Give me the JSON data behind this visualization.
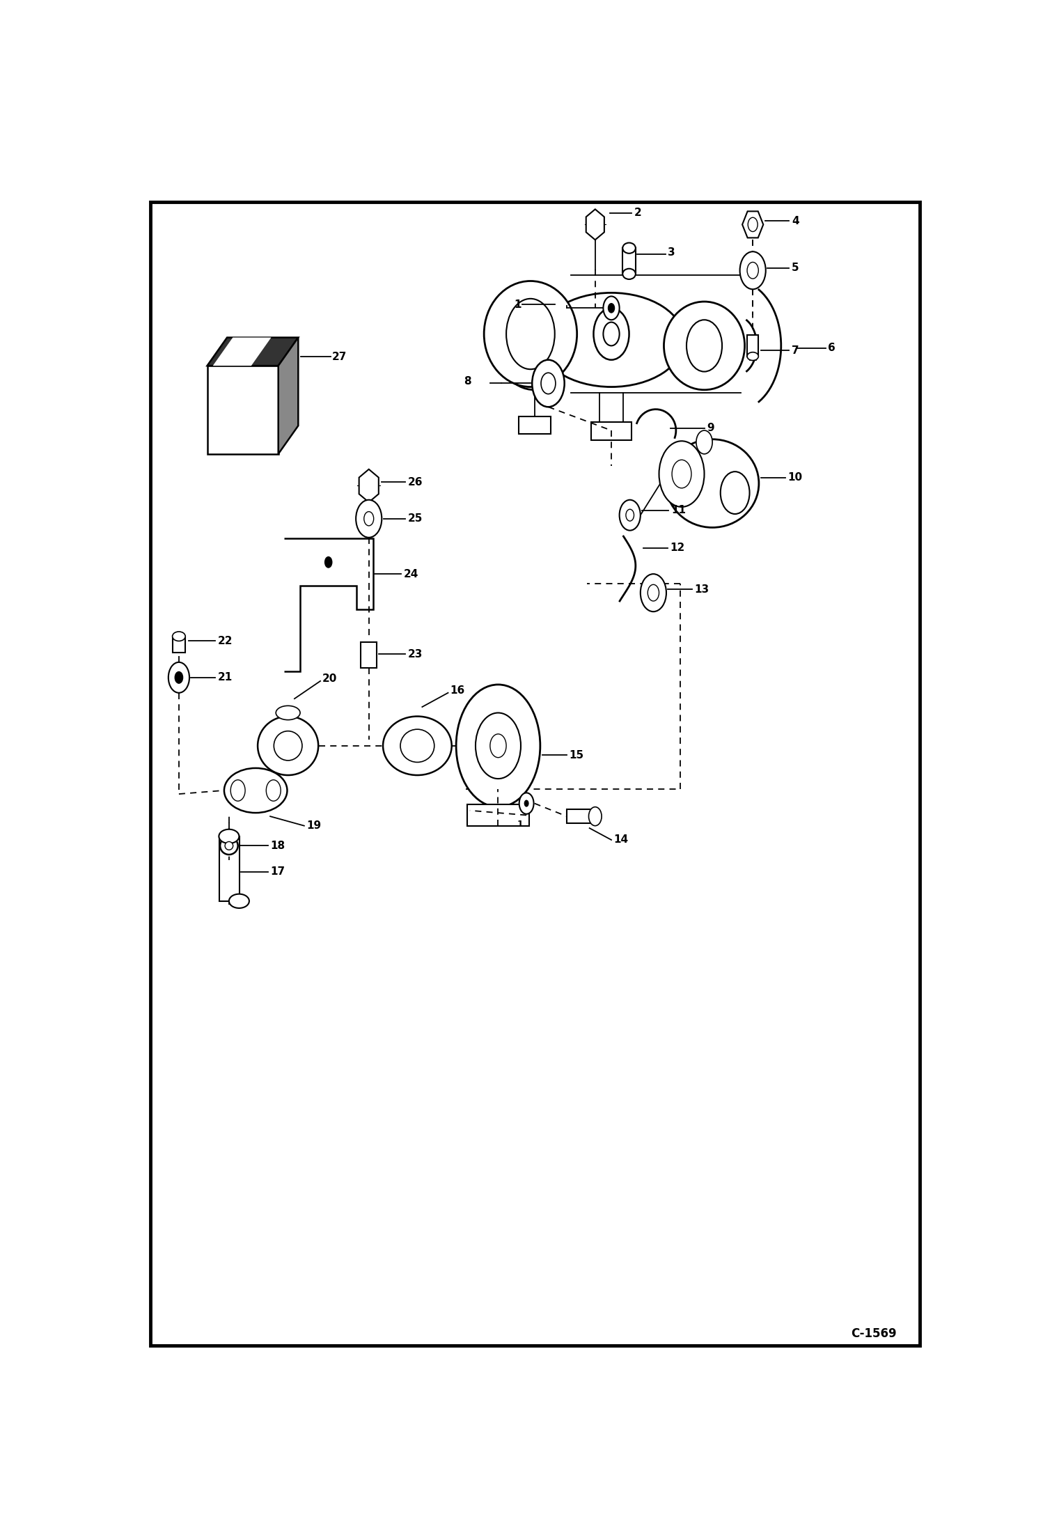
{
  "bg_color": "#ffffff",
  "border_color": "#000000",
  "line_color": "#000000",
  "text_color": "#000000",
  "fig_width": 14.98,
  "fig_height": 21.94,
  "dpi": 100,
  "watermark": "C-1569"
}
